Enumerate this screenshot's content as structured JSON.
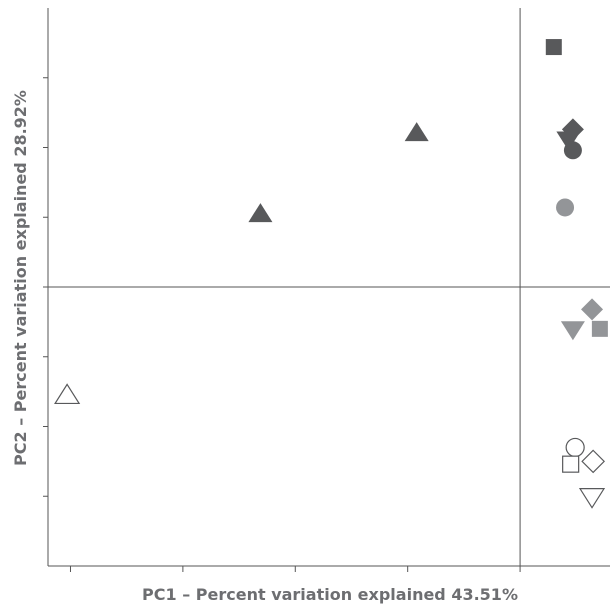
{
  "chart_data": {
    "type": "scatter",
    "xlabel": "PC1 – Percent variation explained 43.51%",
    "ylabel": "PC2 – Percent variation explained 28.92%",
    "xlim": [
      -2.2,
      2.8
    ],
    "ylim": [
      -2.0,
      2.0
    ],
    "x_ticks": [
      -2,
      -1,
      0,
      1,
      2
    ],
    "y_ticks": [
      -1.5,
      -1.0,
      -0.5,
      0.0,
      0.5,
      1.0,
      1.5
    ],
    "crosshair": {
      "x": 2.0,
      "y": 0.0
    },
    "grid": false,
    "legend": "none",
    "colors": {
      "dark": "#58595b",
      "mid": "#939598",
      "open": "#ffffff",
      "stroke": "#58595b",
      "axis": "#555555"
    },
    "series": [
      {
        "color": "dark",
        "points": [
          {
            "x": 2.3,
            "y": 1.72,
            "marker": "square"
          },
          {
            "x": 2.47,
            "y": 1.13,
            "marker": "diamond"
          },
          {
            "x": 2.43,
            "y": 1.05,
            "marker": "triangle-down"
          },
          {
            "x": 2.47,
            "y": 0.98,
            "marker": "circle"
          },
          {
            "x": 1.08,
            "y": 1.11,
            "marker": "triangle-up"
          },
          {
            "x": -0.31,
            "y": 0.53,
            "marker": "triangle-up"
          }
        ]
      },
      {
        "color": "mid",
        "points": [
          {
            "x": 2.4,
            "y": 0.57,
            "marker": "circle"
          },
          {
            "x": 2.64,
            "y": -0.16,
            "marker": "diamond"
          },
          {
            "x": 2.71,
            "y": -0.3,
            "marker": "square"
          },
          {
            "x": 2.47,
            "y": -0.31,
            "marker": "triangle-down"
          }
        ]
      },
      {
        "color": "open",
        "points": [
          {
            "x": -2.03,
            "y": -0.77,
            "marker": "triangle-up"
          },
          {
            "x": 2.49,
            "y": -1.15,
            "marker": "circle"
          },
          {
            "x": 2.65,
            "y": -1.25,
            "marker": "diamond"
          },
          {
            "x": 2.45,
            "y": -1.27,
            "marker": "square"
          },
          {
            "x": 2.64,
            "y": -1.51,
            "marker": "triangle-down"
          }
        ]
      }
    ]
  }
}
